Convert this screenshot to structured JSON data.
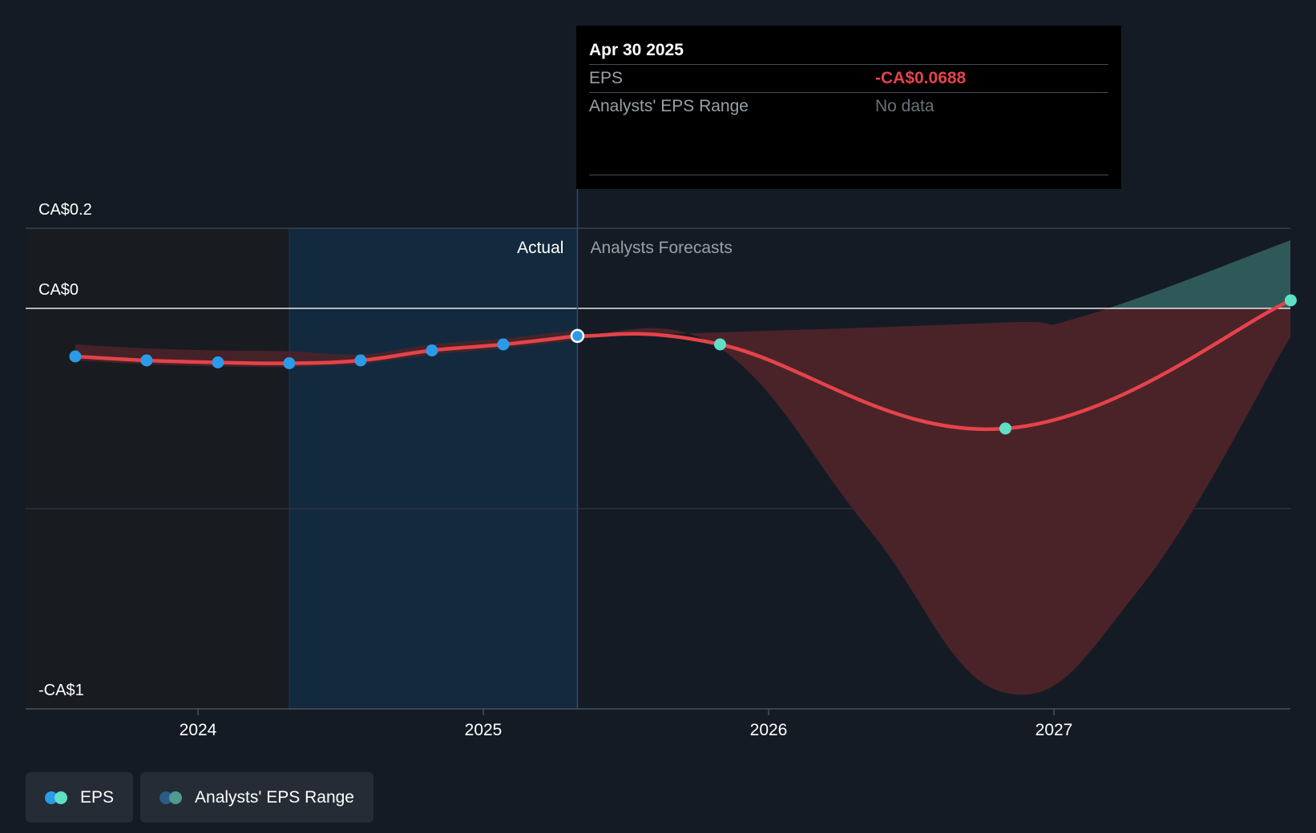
{
  "chart_data": {
    "type": "line",
    "y_ticks": [
      "CA$0.2",
      "CA$0",
      "-CA$1"
    ],
    "x_ticks": [
      "2024",
      "2025",
      "2026",
      "2027"
    ],
    "regions": {
      "actual_label": "Actual",
      "forecast_label": "Analysts Forecasts"
    },
    "series": [
      {
        "name": "EPS",
        "kind": "actual",
        "color": "#2b9be8",
        "points": [
          {
            "x": 2023.57,
            "y": -0.12
          },
          {
            "x": 2023.82,
            "y": -0.13
          },
          {
            "x": 2024.07,
            "y": -0.135
          },
          {
            "x": 2024.32,
            "y": -0.137
          },
          {
            "x": 2024.57,
            "y": -0.13
          },
          {
            "x": 2024.82,
            "y": -0.105
          },
          {
            "x": 2025.07,
            "y": -0.09
          },
          {
            "x": 2025.33,
            "y": -0.0688
          }
        ]
      },
      {
        "name": "EPS",
        "kind": "forecast",
        "color": "#5de0c6",
        "points": [
          {
            "x": 2025.33,
            "y": -0.0688
          },
          {
            "x": 2025.83,
            "y": -0.09
          },
          {
            "x": 2026.83,
            "y": -0.3
          },
          {
            "x": 2027.83,
            "y": 0.02
          }
        ]
      }
    ],
    "range_band": {
      "name": "Analysts' EPS Range",
      "forecast_upper": [
        {
          "x": 2025.33,
          "y": -0.0688
        },
        {
          "x": 2025.83,
          "y": -0.06
        },
        {
          "x": 2026.83,
          "y": -0.035
        },
        {
          "x": 2027.1,
          "y": -0.02
        },
        {
          "x": 2027.83,
          "y": 0.17
        }
      ],
      "forecast_lower": [
        {
          "x": 2025.33,
          "y": -0.0688
        },
        {
          "x": 2025.83,
          "y": -0.1
        },
        {
          "x": 2026.35,
          "y": -0.55
        },
        {
          "x": 2026.83,
          "y": -0.96
        },
        {
          "x": 2027.3,
          "y": -0.7
        },
        {
          "x": 2027.83,
          "y": -0.07
        }
      ]
    },
    "colors": {
      "eps_line": "#e5434a",
      "range_negative": "#4a2329",
      "range_positive": "#2f5859",
      "actual_highlight": "#132a3e"
    },
    "tooltip": {
      "date": "Apr 30 2025",
      "rows": [
        {
          "label": "EPS",
          "value": "-CA$0.0688"
        },
        {
          "label": "Analysts' EPS Range",
          "value": "No data"
        }
      ]
    },
    "legend": [
      {
        "label": "EPS",
        "colors": [
          "#2b9be8",
          "#5de0c6"
        ]
      },
      {
        "label": "Analysts' EPS Range",
        "colors": [
          "#2a5d86",
          "#4f9a91"
        ]
      }
    ]
  }
}
